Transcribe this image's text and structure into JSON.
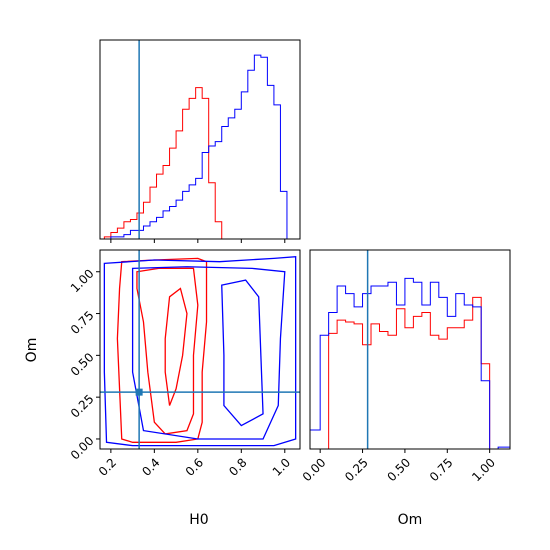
{
  "chart_data": {
    "type": "corner",
    "parameters": [
      "H0",
      "Om"
    ],
    "truths": {
      "H0": 0.33,
      "Om": 0.28
    },
    "colors": {
      "red": "#ff0000",
      "blue": "#0000ff",
      "truth": "#1f77b4"
    },
    "panels": [
      {
        "id": "hist-H0",
        "type": "histogram",
        "xlim": [
          0.15,
          1.07
        ],
        "xticks": [
          0.2,
          0.4,
          0.6,
          0.8,
          1.0
        ],
        "bin_edges": [
          0.17,
          0.2,
          0.23,
          0.26,
          0.29,
          0.32,
          0.35,
          0.38,
          0.41,
          0.44,
          0.47,
          0.5,
          0.53,
          0.56,
          0.59,
          0.62,
          0.65,
          0.68,
          0.71,
          0.74,
          0.77,
          0.8,
          0.83,
          0.86,
          0.89,
          0.92,
          0.95,
          0.98,
          1.01,
          1.04
        ],
        "series": [
          {
            "color": "red",
            "counts": [
              1,
              3,
              5,
              8,
              9,
              12,
              17,
              24,
              30,
              34,
              42,
              50,
              60,
              65,
              70,
              65,
              26,
              8,
              0,
              0,
              0,
              0,
              0,
              0,
              0,
              0,
              0,
              0,
              0
            ]
          },
          {
            "color": "blue",
            "counts": [
              0,
              1,
              1,
              2,
              4,
              4,
              6,
              8,
              10,
              13,
              15,
              18,
              22,
              25,
              28,
              40,
              43,
              45,
              52,
              56,
              60,
              68,
              78,
              85,
              84,
              71,
              62,
              22,
              0
            ]
          }
        ],
        "ymax": 92
      },
      {
        "id": "contour-H0-Om",
        "type": "contour",
        "xlim": [
          0.15,
          1.07
        ],
        "ylim": [
          -0.06,
          1.13
        ],
        "xticks": [
          0.2,
          0.4,
          0.6,
          0.8,
          1.0
        ],
        "yticks": [
          0.0,
          0.25,
          0.5,
          0.75,
          1.0
        ],
        "xlabel": "H0",
        "ylabel": "Om",
        "series": [
          {
            "color": "red",
            "contours": [
              [
                [
                  0.25,
                  1.06
                ],
                [
                  0.4,
                  1.07
                ],
                [
                  0.6,
                  1.08
                ],
                [
                  0.64,
                  1.06
                ],
                [
                  0.64,
                  0.7
                ],
                [
                  0.62,
                  0.4
                ],
                [
                  0.62,
                  0.1
                ],
                [
                  0.6,
                  0.0
                ],
                [
                  0.5,
                  -0.02
                ],
                [
                  0.3,
                  -0.02
                ],
                [
                  0.25,
                  0.0
                ],
                [
                  0.24,
                  0.3
                ],
                [
                  0.23,
                  0.6
                ],
                [
                  0.24,
                  0.9
                ],
                [
                  0.25,
                  1.06
                ]
              ],
              [
                [
                  0.32,
                  1.0
                ],
                [
                  0.42,
                  1.02
                ],
                [
                  0.58,
                  1.02
                ],
                [
                  0.6,
                  0.8
                ],
                [
                  0.58,
                  0.5
                ],
                [
                  0.58,
                  0.15
                ],
                [
                  0.55,
                  0.05
                ],
                [
                  0.45,
                  0.03
                ],
                [
                  0.4,
                  0.1
                ],
                [
                  0.37,
                  0.4
                ],
                [
                  0.35,
                  0.7
                ],
                [
                  0.32,
                  0.9
                ],
                [
                  0.32,
                  1.0
                ]
              ],
              [
                [
                  0.47,
                  0.85
                ],
                [
                  0.52,
                  0.9
                ],
                [
                  0.55,
                  0.75
                ],
                [
                  0.53,
                  0.5
                ],
                [
                  0.5,
                  0.3
                ],
                [
                  0.47,
                  0.2
                ],
                [
                  0.45,
                  0.4
                ],
                [
                  0.45,
                  0.6
                ],
                [
                  0.47,
                  0.85
                ]
              ]
            ]
          },
          {
            "color": "blue",
            "contours": [
              [
                [
                  0.17,
                  1.05
                ],
                [
                  0.4,
                  1.07
                ],
                [
                  0.7,
                  1.06
                ],
                [
                  0.95,
                  1.08
                ],
                [
                  1.05,
                  1.09
                ],
                [
                  1.05,
                  0.0
                ],
                [
                  0.95,
                  -0.04
                ],
                [
                  0.6,
                  -0.04
                ],
                [
                  0.3,
                  -0.04
                ],
                [
                  0.18,
                  -0.02
                ],
                [
                  0.17,
                  0.4
                ],
                [
                  0.17,
                  1.05
                ]
              ],
              [
                [
                  0.3,
                  1.02
                ],
                [
                  0.55,
                  1.03
                ],
                [
                  0.85,
                  1.02
                ],
                [
                  1.0,
                  1.0
                ],
                [
                  0.98,
                  0.6
                ],
                [
                  0.97,
                  0.2
                ],
                [
                  0.9,
                  0.0
                ],
                [
                  0.6,
                  0.0
                ],
                [
                  0.35,
                  0.05
                ],
                [
                  0.3,
                  0.4
                ],
                [
                  0.3,
                  1.02
                ]
              ],
              [
                [
                  0.71,
                  0.92
                ],
                [
                  0.82,
                  0.95
                ],
                [
                  0.88,
                  0.85
                ],
                [
                  0.89,
                  0.5
                ],
                [
                  0.9,
                  0.15
                ],
                [
                  0.8,
                  0.08
                ],
                [
                  0.72,
                  0.2
                ],
                [
                  0.72,
                  0.5
                ],
                [
                  0.71,
                  0.92
                ]
              ]
            ]
          }
        ]
      },
      {
        "id": "hist-Om",
        "type": "histogram",
        "xlim": [
          -0.06,
          1.12
        ],
        "xticks": [
          0.0,
          0.25,
          0.5,
          0.75,
          1.0
        ],
        "xlabel": "Om",
        "bin_edges": [
          -0.06,
          0.0,
          0.05,
          0.1,
          0.15,
          0.2,
          0.25,
          0.3,
          0.35,
          0.4,
          0.45,
          0.5,
          0.55,
          0.6,
          0.65,
          0.7,
          0.75,
          0.8,
          0.85,
          0.9,
          0.95,
          1.0,
          1.05,
          1.12
        ],
        "series": [
          {
            "color": "red",
            "counts": [
              0,
              0,
              61,
              68,
              67,
              66,
              55,
              66,
              62,
              60,
              74,
              64,
              70,
              72,
              60,
              58,
              64,
              64,
              68,
              80,
              45,
              0,
              0
            ]
          },
          {
            "color": "blue",
            "counts": [
              10,
              60,
              72,
              86,
              82,
              75,
              82,
              86,
              86,
              88,
              76,
              90,
              88,
              76,
              88,
              80,
              70,
              82,
              76,
              75,
              36,
              0,
              1
            ]
          }
        ],
        "ymax": 105
      }
    ]
  }
}
